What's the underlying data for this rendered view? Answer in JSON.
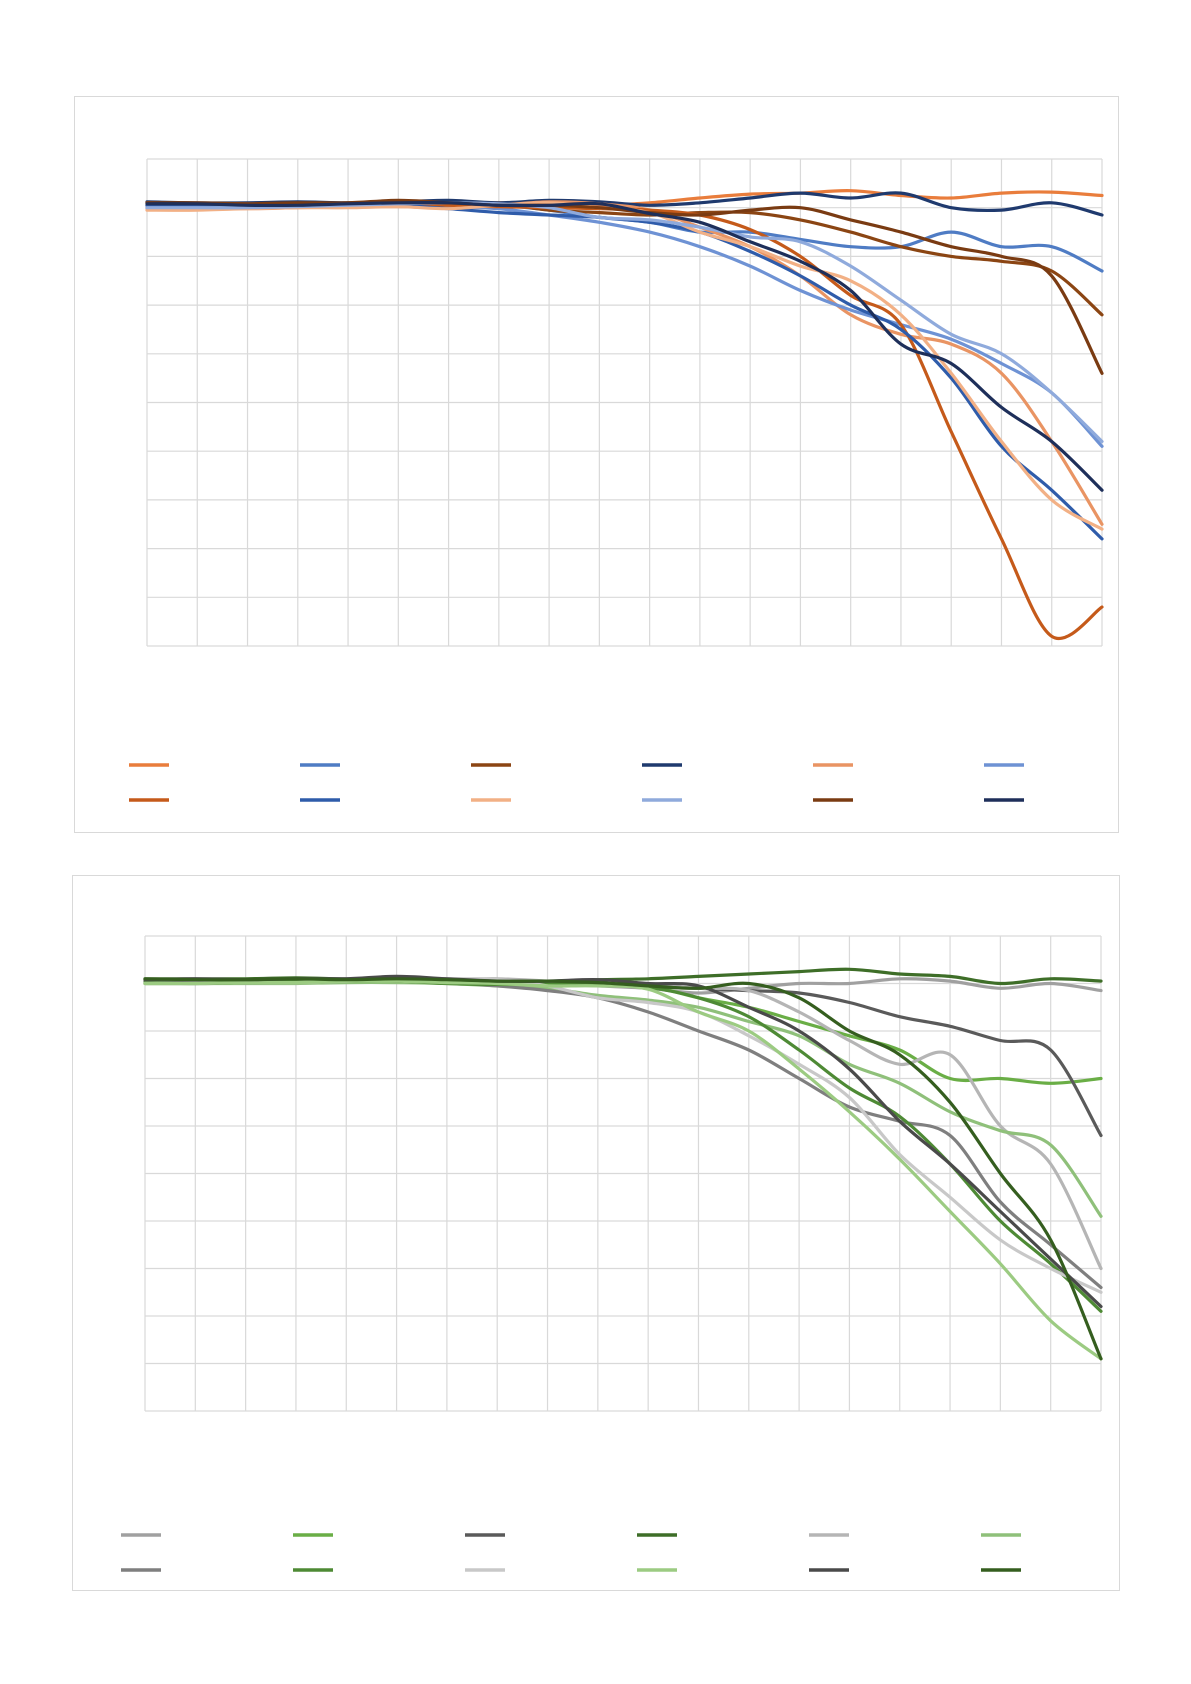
{
  "charts": [
    {
      "colors": [
        "#E97D3C",
        "#4F7CC4",
        "#8B4513",
        "#1F3A6E",
        "#E99463",
        "#6E92D4",
        "#C55A1A",
        "#2F5CAA",
        "#F2B085",
        "#8FAADC",
        "#7A3B12",
        "#1E2F5A"
      ],
      "chart_data": {
        "type": "line",
        "x": [
          0,
          1,
          2,
          3,
          4,
          5,
          6,
          7,
          8,
          9,
          10,
          11,
          12,
          13,
          14,
          15,
          16,
          17,
          18,
          19
        ],
        "xlim": [
          0,
          19
        ],
        "ylim": [
          0,
          10
        ],
        "x_gridlines": [
          0,
          1,
          2,
          3,
          4,
          5,
          6,
          7,
          8,
          9,
          10,
          11,
          12,
          13,
          14,
          15,
          16,
          17,
          18,
          19
        ],
        "y_gridlines": [
          0,
          1,
          2,
          3,
          4,
          5,
          6,
          7,
          8,
          9,
          10
        ],
        "grid": true,
        "legend_position": "bottom",
        "series": [
          {
            "values": [
              9.0,
              9.0,
              9.02,
              9.05,
              9.05,
              9.08,
              9.08,
              9.1,
              9.08,
              9.05,
              9.1,
              9.2,
              9.28,
              9.3,
              9.35,
              9.25,
              9.2,
              9.3,
              9.32,
              9.25
            ]
          },
          {
            "values": [
              9.05,
              9.02,
              9.0,
              9.02,
              9.05,
              9.05,
              9.08,
              9.05,
              8.95,
              8.8,
              8.7,
              8.5,
              8.5,
              8.35,
              8.2,
              8.2,
              8.5,
              8.2,
              8.2,
              7.7
            ]
          },
          {
            "values": [
              9.1,
              9.08,
              9.08,
              9.05,
              9.1,
              9.1,
              9.05,
              9.08,
              8.95,
              8.9,
              8.85,
              8.9,
              8.9,
              8.75,
              8.5,
              8.2,
              8.0,
              7.9,
              7.7,
              6.8
            ]
          },
          {
            "values": [
              9.12,
              9.1,
              9.1,
              9.12,
              9.1,
              9.12,
              9.15,
              9.1,
              9.15,
              9.12,
              9.05,
              9.1,
              9.2,
              9.3,
              9.2,
              9.3,
              9.0,
              8.95,
              9.1,
              8.85
            ]
          },
          {
            "values": [
              8.98,
              9.0,
              8.98,
              9.0,
              9.02,
              9.02,
              9.0,
              9.05,
              9.12,
              9.08,
              8.95,
              8.6,
              8.2,
              7.6,
              6.8,
              6.4,
              6.2,
              5.6,
              4.2,
              2.5
            ]
          },
          {
            "values": [
              9.05,
              9.02,
              9.05,
              9.05,
              9.05,
              9.05,
              9.02,
              8.98,
              8.85,
              8.7,
              8.5,
              8.2,
              7.8,
              7.3,
              6.9,
              6.6,
              6.3,
              5.8,
              5.2,
              4.1
            ]
          },
          {
            "values": [
              9.1,
              9.08,
              9.08,
              9.05,
              9.08,
              9.05,
              9.05,
              9.02,
              9.0,
              8.98,
              8.95,
              8.85,
              8.55,
              8.0,
              7.2,
              6.6,
              4.4,
              2.2,
              0.2,
              0.8
            ]
          },
          {
            "values": [
              9.05,
              9.05,
              9.08,
              9.08,
              9.05,
              9.05,
              8.98,
              8.9,
              8.85,
              8.8,
              8.7,
              8.5,
              8.1,
              7.6,
              7.0,
              6.5,
              5.5,
              4.1,
              3.2,
              2.2
            ]
          },
          {
            "values": [
              8.95,
              8.95,
              8.98,
              9.0,
              9.0,
              9.02,
              8.98,
              9.05,
              9.1,
              9.0,
              8.9,
              8.5,
              8.2,
              7.8,
              7.5,
              6.8,
              5.6,
              4.2,
              3.0,
              2.4
            ]
          },
          {
            "values": [
              9.0,
              9.0,
              9.0,
              9.02,
              9.05,
              9.08,
              9.1,
              9.08,
              9.0,
              8.8,
              8.75,
              8.6,
              8.4,
              8.3,
              7.8,
              7.1,
              6.4,
              6.0,
              5.2,
              4.2
            ]
          },
          {
            "values": [
              9.1,
              9.1,
              9.08,
              9.1,
              9.1,
              9.15,
              9.1,
              9.05,
              9.05,
              9.0,
              8.9,
              8.85,
              8.95,
              9.0,
              8.75,
              8.5,
              8.2,
              8.0,
              7.6,
              5.6
            ]
          },
          {
            "values": [
              9.08,
              9.08,
              9.05,
              9.05,
              9.08,
              9.1,
              9.1,
              9.05,
              9.05,
              9.08,
              8.88,
              8.7,
              8.3,
              7.9,
              7.3,
              6.2,
              5.8,
              4.9,
              4.2,
              3.2
            ]
          }
        ]
      }
    },
    {
      "colors": [
        "#A0A0A0",
        "#6AAE46",
        "#5A5A5A",
        "#3E6E28",
        "#B5B5B5",
        "#8FC07A",
        "#7F7F7F",
        "#4E8A35",
        "#C8C8C8",
        "#9CCB82",
        "#4A4A4A",
        "#355E1F"
      ],
      "chart_data": {
        "type": "line",
        "x": [
          0,
          1,
          2,
          3,
          4,
          5,
          6,
          7,
          8,
          9,
          10,
          11,
          12,
          13,
          14,
          15,
          16,
          17,
          18,
          19
        ],
        "xlim": [
          0,
          19
        ],
        "ylim": [
          0,
          10
        ],
        "x_gridlines": [
          0,
          1,
          2,
          3,
          4,
          5,
          6,
          7,
          8,
          9,
          10,
          11,
          12,
          13,
          14,
          15,
          16,
          17,
          18,
          19
        ],
        "y_gridlines": [
          0,
          1,
          2,
          3,
          4,
          5,
          6,
          7,
          8,
          9,
          10
        ],
        "grid": true,
        "legend_position": "bottom",
        "series": [
          {
            "values": [
              9.05,
              9.05,
              9.08,
              9.05,
              9.05,
              9.08,
              9.05,
              9.02,
              9.0,
              8.95,
              8.9,
              8.8,
              8.9,
              9.0,
              9.0,
              9.1,
              9.05,
              8.9,
              9.0,
              8.85
            ]
          },
          {
            "values": [
              9.0,
              9.0,
              9.02,
              9.02,
              9.05,
              9.05,
              9.02,
              9.02,
              9.0,
              8.98,
              8.95,
              8.7,
              8.5,
              8.2,
              7.9,
              7.6,
              7.0,
              7.0,
              6.9,
              7.0
            ]
          },
          {
            "values": [
              9.08,
              9.08,
              9.08,
              9.05,
              9.08,
              9.1,
              9.08,
              9.05,
              9.02,
              9.0,
              8.95,
              8.9,
              8.85,
              8.8,
              8.6,
              8.3,
              8.1,
              7.8,
              7.6,
              5.8
            ]
          },
          {
            "values": [
              9.1,
              9.1,
              9.1,
              9.12,
              9.1,
              9.12,
              9.1,
              9.05,
              9.05,
              9.08,
              9.1,
              9.15,
              9.2,
              9.25,
              9.3,
              9.2,
              9.15,
              9.0,
              9.1,
              9.05
            ]
          },
          {
            "values": [
              9.05,
              9.05,
              9.05,
              9.05,
              9.08,
              9.08,
              9.08,
              9.1,
              9.05,
              9.0,
              8.95,
              8.9,
              8.85,
              8.4,
              7.8,
              7.3,
              7.5,
              6.0,
              5.2,
              3.0
            ]
          },
          {
            "values": [
              9.0,
              9.0,
              9.0,
              9.0,
              9.02,
              9.02,
              9.0,
              8.95,
              8.9,
              8.75,
              8.65,
              8.5,
              8.2,
              7.9,
              7.3,
              6.9,
              6.3,
              5.9,
              5.6,
              4.1
            ]
          },
          {
            "values": [
              9.05,
              9.05,
              9.05,
              9.05,
              9.08,
              9.05,
              9.02,
              8.95,
              8.85,
              8.7,
              8.4,
              8.0,
              7.6,
              7.0,
              6.4,
              6.1,
              5.8,
              4.4,
              3.5,
              2.6
            ]
          },
          {
            "values": [
              9.02,
              9.0,
              9.02,
              9.05,
              9.05,
              9.05,
              9.0,
              8.98,
              8.98,
              9.0,
              8.92,
              8.7,
              8.3,
              7.6,
              6.8,
              6.2,
              5.2,
              4.0,
              3.1,
              2.1
            ]
          },
          {
            "values": [
              9.0,
              9.0,
              9.02,
              9.02,
              9.05,
              9.08,
              9.1,
              9.08,
              8.95,
              8.7,
              8.6,
              8.4,
              7.9,
              7.3,
              6.6,
              5.4,
              4.5,
              3.6,
              3.0,
              2.5
            ]
          },
          {
            "values": [
              9.0,
              9.0,
              9.02,
              9.02,
              9.05,
              9.05,
              9.02,
              9.0,
              8.95,
              8.95,
              8.88,
              8.4,
              8.0,
              7.2,
              6.3,
              5.3,
              4.2,
              3.1,
              1.9,
              1.1
            ]
          },
          {
            "values": [
              9.08,
              9.1,
              9.08,
              9.1,
              9.1,
              9.15,
              9.1,
              9.05,
              9.05,
              9.08,
              9.0,
              8.95,
              8.5,
              8.0,
              7.2,
              6.1,
              5.2,
              4.2,
              3.2,
              2.2
            ]
          },
          {
            "values": [
              9.1,
              9.08,
              9.08,
              9.1,
              9.08,
              9.1,
              9.08,
              9.05,
              9.05,
              9.02,
              8.95,
              8.9,
              9.0,
              8.7,
              8.0,
              7.5,
              6.5,
              5.0,
              3.6,
              1.1
            ]
          }
        ]
      }
    }
  ]
}
